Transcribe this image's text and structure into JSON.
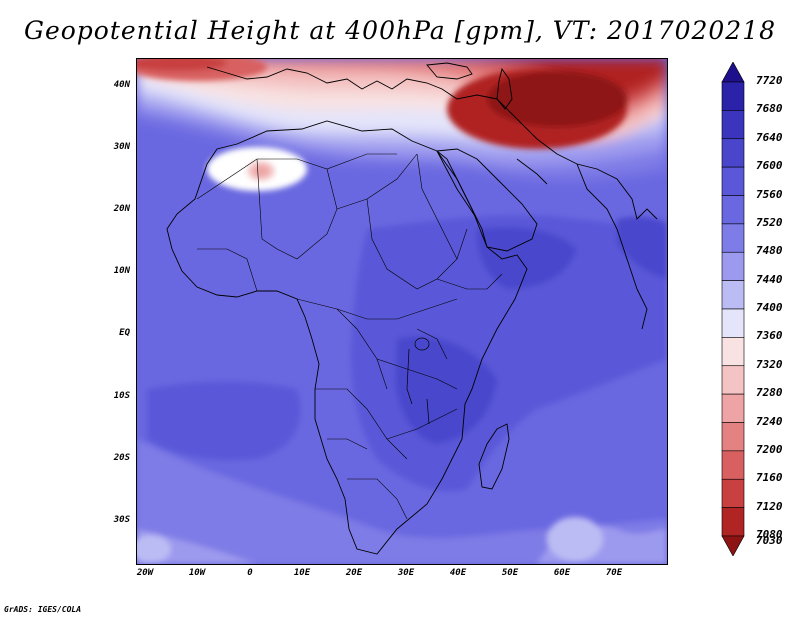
{
  "title": "Geopotential Height at 400hPa [gpm], VT: 2017020218",
  "credit": "GrADS: IGES/COLA",
  "lat_labels": [
    "40N",
    "30N",
    "20N",
    "10N",
    "EQ",
    "10S",
    "20S",
    "30S"
  ],
  "lon_labels": [
    "20W",
    "10W",
    "0",
    "10E",
    "20E",
    "30E",
    "40E",
    "50E",
    "60E",
    "70E"
  ],
  "colorbar": {
    "levels": [
      "7720",
      "7680",
      "7640",
      "7600",
      "7560",
      "7520",
      "7480",
      "7440",
      "7400",
      "7360",
      "7320",
      "7280",
      "7240",
      "7200",
      "7160",
      "7120",
      "7080",
      "7030"
    ],
    "colors_top_to_bottom": [
      "#1e0f8c",
      "#2a22a8",
      "#3a35bc",
      "#4a46cc",
      "#5a58d8",
      "#6a68e0",
      "#7e7ce6",
      "#9c9aee",
      "#bcbcf4",
      "#e4e4fa",
      "#f8e2e2",
      "#f4c4c4",
      "#eea4a4",
      "#e48282",
      "#d86060",
      "#c84040",
      "#b02424",
      "#8e1414"
    ]
  }
}
